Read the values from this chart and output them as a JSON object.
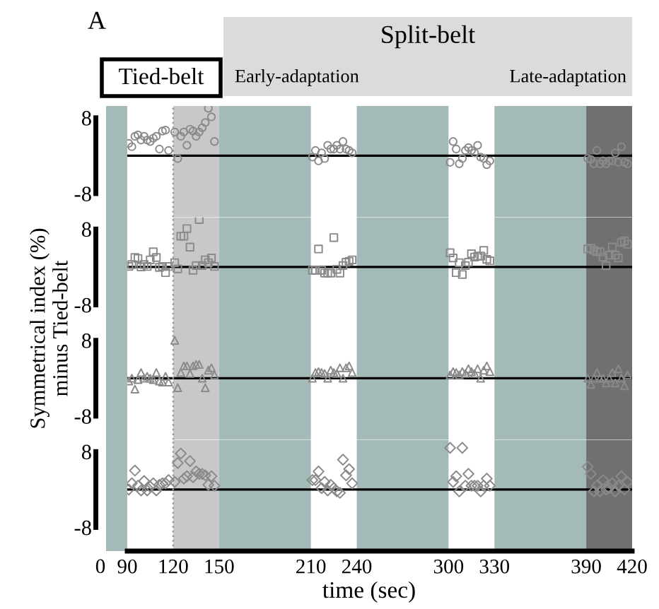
{
  "chart_data": [
    {
      "type": "scatter",
      "title": "A",
      "ylabel": "Symmetrical index (%)\nminus Tied-belt",
      "annotations": [
        "Split-belt",
        "Tied-belt",
        "Early-adaptation",
        "Late-adaptation"
      ],
      "marker": "circle",
      "color": "#8a8a8a",
      "tick_labels": "y",
      "xlim": [
        90,
        420
      ],
      "ylim": [
        -13,
        10.5
      ],
      "yticks": [
        -8,
        8
      ],
      "x": [
        91,
        93,
        95,
        97,
        99,
        101,
        103,
        105,
        107,
        109,
        111,
        113,
        115,
        117,
        121,
        123,
        125,
        127,
        129,
        131,
        133,
        135,
        137,
        139,
        141,
        143,
        145,
        147,
        211,
        213,
        215,
        217,
        219,
        221,
        223,
        225,
        227,
        229,
        231,
        233,
        235,
        237,
        301,
        303,
        305,
        307,
        309,
        311,
        313,
        315,
        317,
        319,
        321,
        323,
        325,
        327,
        391,
        393,
        395,
        397,
        399,
        401,
        403,
        405,
        407,
        409,
        411,
        413,
        415,
        417
      ],
      "values": [
        2.6,
        1.9,
        4.1,
        4.4,
        3.3,
        4.1,
        3.3,
        3.0,
        3.7,
        4.1,
        1.4,
        5.2,
        5.4,
        1.1,
        5.0,
        -0.6,
        4.1,
        5.0,
        2.2,
        5.6,
        5.2,
        4.1,
        5.0,
        5.9,
        7.0,
        10.0,
        8.2,
        3.0,
        -0.3,
        1.1,
        -1.1,
        0.6,
        -0.6,
        2.2,
        1.4,
        1.4,
        2.2,
        1.4,
        3.0,
        1.4,
        1.1,
        0.6,
        -1.4,
        3.0,
        1.4,
        -1.7,
        -0.6,
        1.1,
        1.7,
        1.1,
        0.6,
        2.2,
        -0.3,
        -0.6,
        -1.9,
        -1.1,
        -0.6,
        -0.8,
        -1.7,
        1.1,
        -1.7,
        -1.1,
        -1.7,
        -1.1,
        -1.1,
        0.6,
        -1.4,
        1.9,
        -1.4,
        -1.7
      ],
      "bands": [
        {
          "axis": "x",
          "from": 120,
          "to": 150,
          "color": "#c8c8ca"
        },
        {
          "axis": "x",
          "from": 150,
          "to": 210,
          "color": "#a3bab8"
        },
        {
          "axis": "x",
          "from": 240,
          "to": 300,
          "color": "#a3bab8"
        },
        {
          "axis": "x",
          "from": 330,
          "to": 390,
          "color": "#a3bab8"
        },
        {
          "axis": "x",
          "from": 390,
          "to": 420,
          "color": "#6e7170"
        }
      ],
      "ref_lines": [
        {
          "axis": "y",
          "value": 0,
          "color": "#000000"
        },
        {
          "axis": "x",
          "value": 120,
          "color": "#9a9a9a",
          "line_style": "dotted"
        }
      ]
    },
    {
      "type": "scatter",
      "marker": "square",
      "color": "#8a8a8a",
      "tick_labels": "y",
      "xlim": [
        90,
        420
      ],
      "ylim": [
        -13,
        10.5
      ],
      "yticks": [
        -8,
        8
      ],
      "x": [
        91,
        93,
        95,
        97,
        99,
        101,
        103,
        105,
        107,
        109,
        111,
        113,
        115,
        117,
        121,
        123,
        125,
        127,
        129,
        131,
        133,
        135,
        137,
        139,
        141,
        143,
        145,
        147,
        211,
        213,
        215,
        217,
        219,
        221,
        223,
        225,
        227,
        229,
        231,
        233,
        235,
        237,
        301,
        303,
        305,
        307,
        309,
        311,
        313,
        315,
        317,
        319,
        321,
        323,
        325,
        327,
        391,
        393,
        395,
        397,
        399,
        401,
        403,
        405,
        407,
        409,
        411,
        413,
        415,
        417
      ],
      "values": [
        0.1,
        0.5,
        2.0,
        1.8,
        0.0,
        0.5,
        0.1,
        1.5,
        3.2,
        2.0,
        -0.1,
        0.1,
        -1.2,
        0.1,
        0.9,
        -0.4,
        6.5,
        6.5,
        8.1,
        4.2,
        -0.7,
        0.3,
        10.0,
        0.3,
        1.5,
        0.9,
        1.9,
        0.1,
        -0.7,
        -0.7,
        3.8,
        -0.7,
        -1.3,
        -1.3,
        -1.3,
        6.2,
        -0.5,
        -1.3,
        0.3,
        1.0,
        1.2,
        1.5,
        3.0,
        1.9,
        -1.2,
        0.9,
        -1.6,
        0.3,
        1.0,
        2.8,
        2.1,
        2.3,
        2.3,
        3.5,
        1.6,
        1.3,
        3.8,
        4.0,
        3.5,
        3.2,
        3.2,
        2.1,
        0.3,
        2.5,
        4.2,
        2.5,
        1.9,
        5.2,
        5.5,
        4.8
      ],
      "bands": [
        {
          "axis": "x",
          "from": 120,
          "to": 150,
          "color": "#c8c8ca"
        },
        {
          "axis": "x",
          "from": 150,
          "to": 210,
          "color": "#a3bab8"
        },
        {
          "axis": "x",
          "from": 240,
          "to": 300,
          "color": "#a3bab8"
        },
        {
          "axis": "x",
          "from": 330,
          "to": 390,
          "color": "#a3bab8"
        },
        {
          "axis": "x",
          "from": 390,
          "to": 420,
          "color": "#6e7170"
        }
      ],
      "ref_lines": [
        {
          "axis": "y",
          "value": 0,
          "color": "#000000"
        },
        {
          "axis": "x",
          "value": 120,
          "color": "#9a9a9a",
          "line_style": "dotted"
        }
      ]
    },
    {
      "type": "scatter",
      "marker": "triangle",
      "color": "#8a8a8a",
      "tick_labels": "y",
      "xlim": [
        90,
        420
      ],
      "ylim": [
        -13,
        10.5
      ],
      "yticks": [
        -8,
        8
      ],
      "x": [
        91,
        93,
        95,
        97,
        99,
        101,
        103,
        105,
        107,
        109,
        111,
        113,
        115,
        117,
        121,
        123,
        125,
        127,
        129,
        131,
        133,
        135,
        137,
        139,
        141,
        143,
        145,
        147,
        211,
        213,
        215,
        217,
        219,
        221,
        223,
        225,
        227,
        229,
        231,
        233,
        235,
        237,
        301,
        303,
        305,
        307,
        309,
        311,
        313,
        315,
        317,
        319,
        321,
        323,
        325,
        327,
        391,
        393,
        395,
        397,
        399,
        401,
        403,
        405,
        407,
        409,
        411,
        413,
        415,
        417
      ],
      "values": [
        -0.6,
        0.0,
        -2.3,
        -0.3,
        1.2,
        0.0,
        0.4,
        0.0,
        -0.3,
        1.2,
        -0.6,
        -0.8,
        0.4,
        -0.8,
        8.0,
        -2.0,
        1.2,
        2.6,
        2.6,
        1.0,
        2.6,
        2.9,
        2.9,
        0.0,
        -2.0,
        1.7,
        2.2,
        0.7,
        0.0,
        1.2,
        1.4,
        1.2,
        1.0,
        0.0,
        1.7,
        1.2,
        1.0,
        2.2,
        0.0,
        2.2,
        2.6,
        1.2,
        0.7,
        1.4,
        1.2,
        0.7,
        1.4,
        1.0,
        2.0,
        1.4,
        1.0,
        2.0,
        0.0,
        1.7,
        2.6,
        1.4,
        0.0,
        -1.3,
        0.0,
        1.2,
        0.0,
        0.0,
        -1.0,
        0.0,
        1.2,
        -1.0,
        2.0,
        0.0,
        -1.6,
        0.7
      ],
      "bands": [
        {
          "axis": "x",
          "from": 120,
          "to": 150,
          "color": "#c8c8ca"
        },
        {
          "axis": "x",
          "from": 150,
          "to": 210,
          "color": "#a3bab8"
        },
        {
          "axis": "x",
          "from": 240,
          "to": 300,
          "color": "#a3bab8"
        },
        {
          "axis": "x",
          "from": 330,
          "to": 390,
          "color": "#a3bab8"
        },
        {
          "axis": "x",
          "from": 390,
          "to": 420,
          "color": "#6e7170"
        }
      ],
      "ref_lines": [
        {
          "axis": "y",
          "value": 0,
          "color": "#000000"
        },
        {
          "axis": "x",
          "value": 120,
          "color": "#9a9a9a",
          "line_style": "dotted"
        }
      ]
    },
    {
      "type": "scatter",
      "xlabel": "time (sec)",
      "annotations": [
        "0"
      ],
      "marker": "diamond",
      "color": "#8a8a8a",
      "xlim": [
        90,
        420
      ],
      "xticks": [
        90,
        120,
        150,
        210,
        240,
        300,
        330,
        390,
        420
      ],
      "ylim": [
        -13,
        10.5
      ],
      "yticks": [
        -8,
        8
      ],
      "x": [
        91,
        93,
        95,
        97,
        99,
        101,
        103,
        105,
        107,
        109,
        111,
        113,
        115,
        117,
        121,
        123,
        125,
        127,
        129,
        131,
        133,
        135,
        137,
        139,
        141,
        143,
        145,
        147,
        211,
        213,
        215,
        217,
        219,
        221,
        223,
        225,
        227,
        229,
        231,
        233,
        235,
        237,
        301,
        303,
        305,
        307,
        309,
        311,
        313,
        315,
        317,
        319,
        321,
        323,
        325,
        327,
        391,
        393,
        395,
        397,
        399,
        401,
        403,
        405,
        407,
        409,
        411,
        413,
        415,
        417
      ],
      "values": [
        0.0,
        1.3,
        4.0,
        0.8,
        -0.2,
        1.8,
        -0.2,
        0.6,
        1.3,
        -0.2,
        1.0,
        1.3,
        1.3,
        2.0,
        1.6,
        5.6,
        7.6,
        2.3,
        2.8,
        6.0,
        2.6,
        3.8,
        3.3,
        3.3,
        3.0,
        1.0,
        2.8,
        0.8,
        2.0,
        2.0,
        3.8,
        0.3,
        1.6,
        -0.2,
        1.0,
        0.3,
        -0.4,
        -0.7,
        6.3,
        3.0,
        4.3,
        1.3,
        8.8,
        1.6,
        2.8,
        -0.4,
        8.8,
        0.8,
        3.3,
        0.8,
        0.8,
        0.8,
        -0.4,
        0.8,
        2.3,
        0.8,
        4.8,
        3.3,
        -0.4,
        0.8,
        -0.4,
        2.0,
        0.0,
        0.3,
        1.3,
        -0.4,
        0.8,
        2.8,
        0.0,
        1.6
      ],
      "bands": [
        {
          "axis": "x",
          "from": 120,
          "to": 150,
          "color": "#c8c8ca"
        },
        {
          "axis": "x",
          "from": 150,
          "to": 210,
          "color": "#a3bab8"
        },
        {
          "axis": "x",
          "from": 240,
          "to": 300,
          "color": "#a3bab8"
        },
        {
          "axis": "x",
          "from": 330,
          "to": 390,
          "color": "#a3bab8"
        },
        {
          "axis": "x",
          "from": 390,
          "to": 420,
          "color": "#6e7170"
        }
      ],
      "ref_lines": [
        {
          "axis": "y",
          "value": 0,
          "color": "#000000"
        },
        {
          "axis": "x",
          "value": 120,
          "color": "#9a9a9a",
          "line_style": "dotted"
        }
      ]
    }
  ]
}
